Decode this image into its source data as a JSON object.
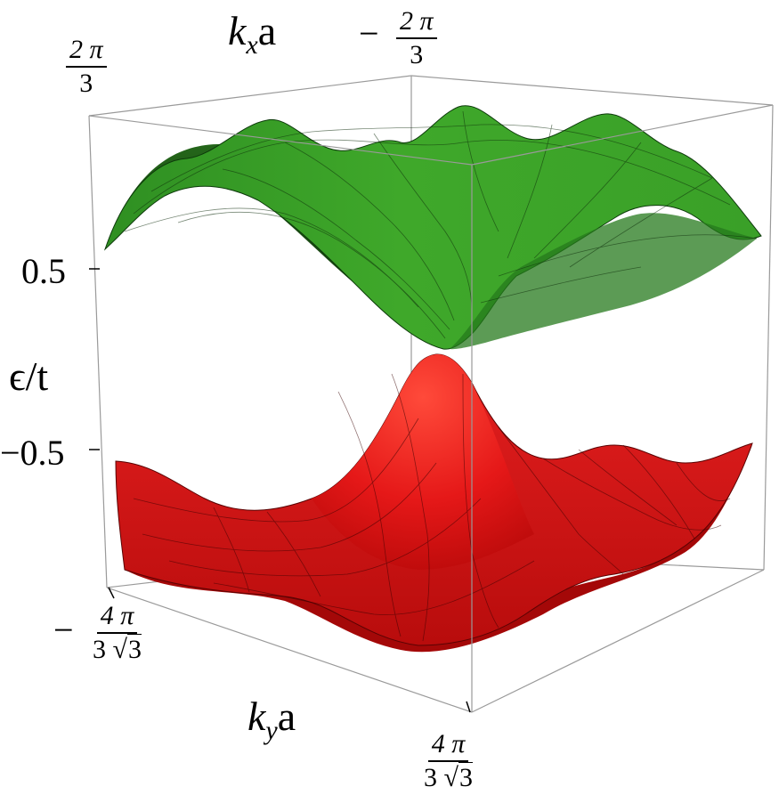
{
  "chart_data": {
    "type": "surface",
    "title": "",
    "series": [
      {
        "name": "",
        "color": "#1a8a1a",
        "z_min": 0.05,
        "z_max": 1.0
      },
      {
        "name": "",
        "color": "#e01010",
        "z_min": -1.0,
        "z_max": -0.05
      }
    ],
    "xlabel": {
      "symbol": "k",
      "sub": "x",
      "tail": "a"
    },
    "ylabel": {
      "symbol": "k",
      "sub": "y",
      "tail": "a"
    },
    "zlabel": "ϵ/t",
    "x_range_labels": {
      "min": {
        "sign": "−",
        "num": "2 π",
        "den": "3"
      },
      "max": {
        "sign": "",
        "num": "2 π",
        "den": "3"
      }
    },
    "y_range_labels": {
      "min": {
        "sign": "−",
        "num": "4 π",
        "den_a": "3 ",
        "den_root": "3"
      },
      "max": {
        "sign": "",
        "num": "4 π",
        "den_a": "3 ",
        "den_root": "3"
      }
    },
    "z_ticks": [
      "0.5",
      "−0.5"
    ],
    "zlim": [
      -1.0,
      1.0
    ],
    "grid": "mesh",
    "box": true
  }
}
